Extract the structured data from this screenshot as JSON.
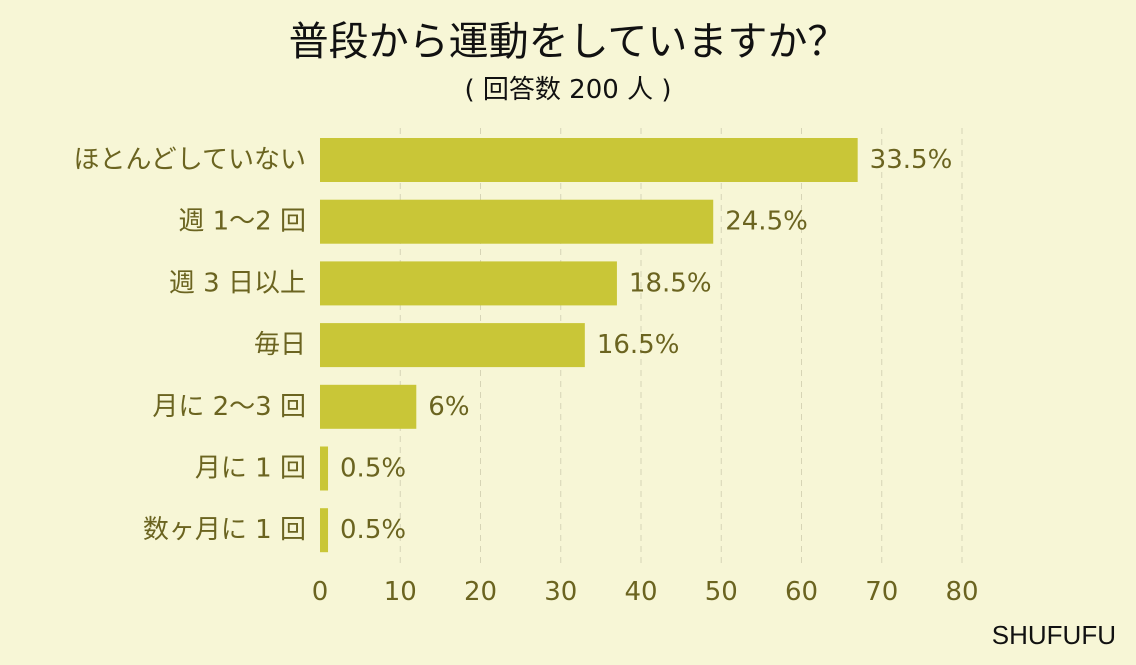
{
  "chart_data": {
    "type": "bar",
    "orientation": "horizontal",
    "title": "普段から運動をしていますか？",
    "subtitle": "( 回答数 200 人 )",
    "categories": [
      "ほとんどしていない",
      "週 1～2 回",
      "週 3 日以上",
      "毎日",
      "月に 2～3 回",
      "月に 1 回",
      "数ヶ月に 1 回"
    ],
    "values": [
      33.5,
      24.5,
      18.5,
      16.5,
      6,
      0.5,
      0.5
    ],
    "value_labels": [
      "33.5%",
      "24.5%",
      "18.5%",
      "16.5%",
      "6%",
      "0.5%",
      "0.5%"
    ],
    "ticks": [
      "0",
      "10",
      "20",
      "30",
      "40",
      "50",
      "60",
      "70",
      "80"
    ],
    "xlim": [
      0,
      80
    ],
    "grid": true,
    "bar_scale": 2,
    "colors": {
      "bar": "#c9c637",
      "text": "#6b6420",
      "grid": "#d6d4b5",
      "background": "#f7f6d6"
    }
  },
  "brand": "SHUFUFU"
}
